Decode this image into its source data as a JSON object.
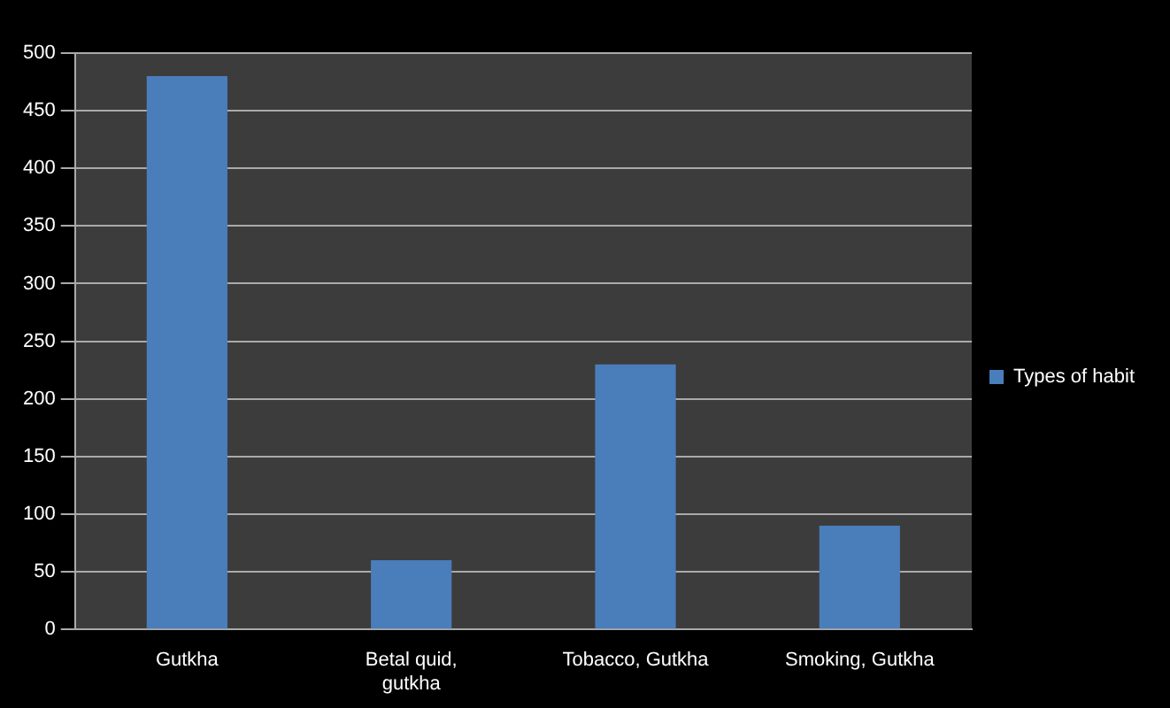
{
  "chart_data": {
    "type": "bar",
    "categories": [
      "Gutkha",
      [
        "Betal quid,",
        "gutkha"
      ],
      "Tobacco, Gutkha",
      "Smoking, Gutkha"
    ],
    "series": [
      {
        "name": "Types of habit",
        "color": "#4a7ebb",
        "values": [
          480,
          60,
          230,
          90
        ]
      }
    ],
    "ylim": [
      0,
      500
    ],
    "yticks": [
      0,
      50,
      100,
      150,
      200,
      250,
      300,
      350,
      400,
      450,
      500
    ],
    "grid": "y",
    "legend": "right"
  }
}
